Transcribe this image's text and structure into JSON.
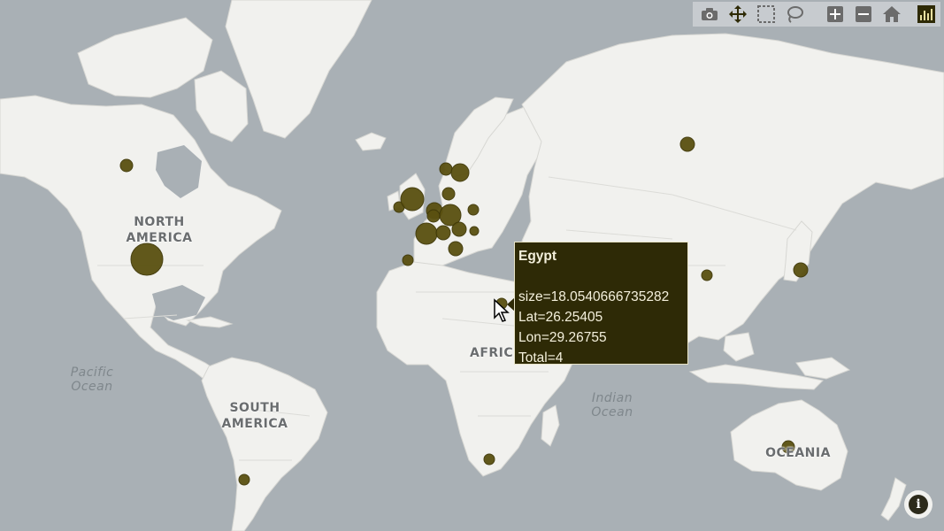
{
  "map": {
    "continent_labels": [
      {
        "id": "north-america",
        "text": "NORTH\nAMERICA"
      },
      {
        "id": "south-america",
        "text": "SOUTH\nAMERICA"
      },
      {
        "id": "africa",
        "text": "AFRIC"
      },
      {
        "id": "oceania",
        "text": "OCEANIA"
      }
    ],
    "ocean_labels": [
      {
        "id": "pacific",
        "text": "Pacific\nOcean"
      },
      {
        "id": "indian",
        "text": "Indian\nOcean"
      }
    ],
    "marker_color": "#5a5010",
    "water_color": "#a9b0b5",
    "land_color": "#f1f1ee"
  },
  "toolbar": {
    "buttons": [
      {
        "id": "download",
        "icon": "camera-icon"
      },
      {
        "id": "pan",
        "icon": "pan-icon"
      },
      {
        "id": "box-select",
        "icon": "box-select-icon"
      },
      {
        "id": "lasso-select",
        "icon": "lasso-icon"
      },
      {
        "id": "zoom-in",
        "icon": "zoom-in-icon"
      },
      {
        "id": "zoom-out",
        "icon": "zoom-out-icon"
      },
      {
        "id": "reset",
        "icon": "home-icon"
      },
      {
        "id": "plotly",
        "icon": "plotly-logo-icon"
      }
    ]
  },
  "tooltip": {
    "title": "Egypt",
    "size": "size=18.0540666735282",
    "lat": "Lat=26.25405",
    "lon": "Lon=29.26755",
    "total": "Total=4"
  },
  "info_button": {
    "icon": "info-icon",
    "label": "i"
  }
}
